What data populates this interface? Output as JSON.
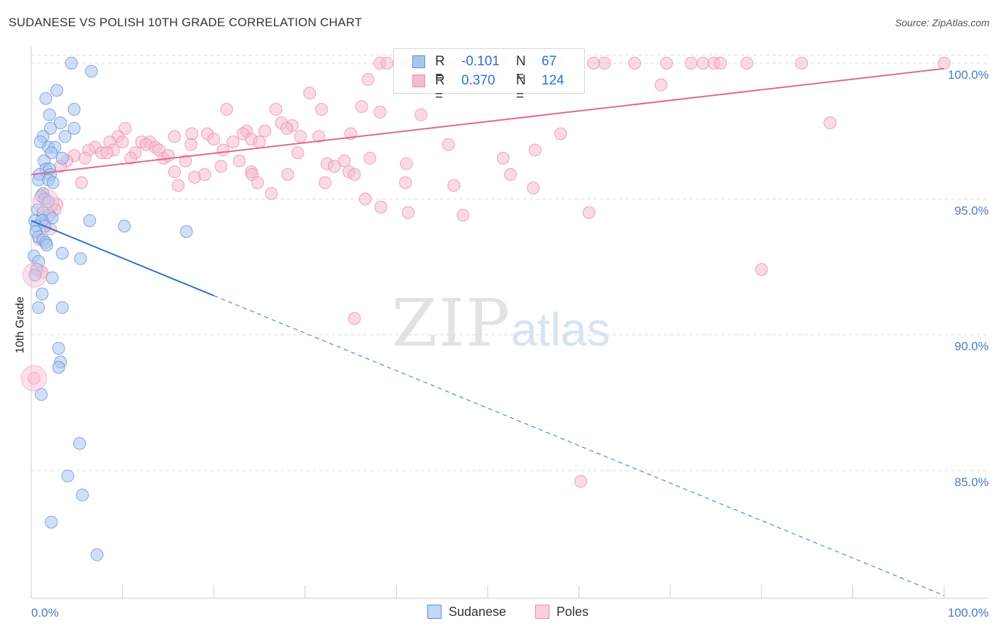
{
  "title": "SUDANESE VS POLISH 10TH GRADE CORRELATION CHART",
  "source": "Source: ZipAtlas.com",
  "watermark": {
    "part1": "ZIP",
    "part2": "atlas"
  },
  "legend": {
    "rows": [
      {
        "r_label": "R =",
        "r_value": "-0.101",
        "n_label": "N =",
        "n_value": "67"
      },
      {
        "r_label": "R =",
        "r_value": "0.370",
        "n_label": "N =",
        "n_value": "124"
      }
    ]
  },
  "bottom_legend": {
    "sudanese": "Sudanese",
    "poles": "Poles"
  },
  "colors": {
    "sudanese_fill": "#a9c5ee",
    "sudanese_stroke": "#5b8fd6",
    "sudanese_line": "#2f6fd1",
    "poles_fill": "#f6bcd0",
    "poles_stroke": "#e88aa8",
    "poles_line": "#e0678f",
    "tick_text": "#4a79c8"
  },
  "chart_data": {
    "type": "scatter",
    "title": "SUDANESE VS POLISH 10TH GRADE CORRELATION CHART",
    "xlabel": "",
    "ylabel": "10th Grade",
    "xlim": [
      0,
      100
    ],
    "ylim": [
      80.3,
      100.6
    ],
    "x_tick_labels": [
      "0.0%",
      "100.0%"
    ],
    "y_ticks": [
      100,
      95,
      90,
      85
    ],
    "y_tick_labels": [
      "100.0%",
      "95.0%",
      "90.0%",
      "85.0%"
    ],
    "grid": "horizontal dashed",
    "legend_position": "top-center",
    "series": [
      {
        "name": "Sudanese",
        "points": [
          [
            4.4,
            100.0
          ],
          [
            6.6,
            99.7
          ],
          [
            2.8,
            99.0
          ],
          [
            1.6,
            98.7
          ],
          [
            4.7,
            98.3
          ],
          [
            2.0,
            98.1
          ],
          [
            3.2,
            97.8
          ],
          [
            4.7,
            97.6
          ],
          [
            2.1,
            97.6
          ],
          [
            1.3,
            97.3
          ],
          [
            3.7,
            97.3
          ],
          [
            1.0,
            97.1
          ],
          [
            1.9,
            96.9
          ],
          [
            2.6,
            96.9
          ],
          [
            2.2,
            96.7
          ],
          [
            3.4,
            96.5
          ],
          [
            1.4,
            96.4
          ],
          [
            1.6,
            96.1
          ],
          [
            2.0,
            96.1
          ],
          [
            0.9,
            95.9
          ],
          [
            2.1,
            95.9
          ],
          [
            0.8,
            95.7
          ],
          [
            1.9,
            95.7
          ],
          [
            2.4,
            95.6
          ],
          [
            1.3,
            95.2
          ],
          [
            1.1,
            95.1
          ],
          [
            1.5,
            95.0
          ],
          [
            1.9,
            94.9
          ],
          [
            0.7,
            94.6
          ],
          [
            1.3,
            94.5
          ],
          [
            2.0,
            94.4
          ],
          [
            2.3,
            94.3
          ],
          [
            0.4,
            94.2
          ],
          [
            1.2,
            94.2
          ],
          [
            6.4,
            94.2
          ],
          [
            0.6,
            94.0
          ],
          [
            1.5,
            94.0
          ],
          [
            10.2,
            94.0
          ],
          [
            17.0,
            93.8
          ],
          [
            0.5,
            93.8
          ],
          [
            0.8,
            93.6
          ],
          [
            1.3,
            93.5
          ],
          [
            1.6,
            93.4
          ],
          [
            1.7,
            93.3
          ],
          [
            3.4,
            93.0
          ],
          [
            0.3,
            92.9
          ],
          [
            5.4,
            92.8
          ],
          [
            0.8,
            92.7
          ],
          [
            0.6,
            92.4
          ],
          [
            0.4,
            92.2
          ],
          [
            2.3,
            92.1
          ],
          [
            1.2,
            91.5
          ],
          [
            3.4,
            91.0
          ],
          [
            0.8,
            91.0
          ],
          [
            3.0,
            89.5
          ],
          [
            3.2,
            89.0
          ],
          [
            3.0,
            88.8
          ],
          [
            1.1,
            87.8
          ],
          [
            5.3,
            86.0
          ],
          [
            4.0,
            84.8
          ],
          [
            5.6,
            84.1
          ],
          [
            2.2,
            83.1
          ],
          [
            7.2,
            81.9
          ]
        ]
      },
      {
        "name": "Poles",
        "points": [
          [
            38.2,
            100.0
          ],
          [
            39.0,
            100.0
          ],
          [
            40.3,
            100.0
          ],
          [
            41.5,
            100.0
          ],
          [
            44.1,
            100.0
          ],
          [
            45.4,
            100.0
          ],
          [
            47.1,
            100.0
          ],
          [
            48.5,
            100.0
          ],
          [
            49.8,
            100.0
          ],
          [
            51.3,
            100.0
          ],
          [
            53.7,
            100.0
          ],
          [
            57.6,
            100.0
          ],
          [
            61.6,
            100.0
          ],
          [
            62.8,
            100.0
          ],
          [
            66.1,
            100.0
          ],
          [
            69.6,
            100.0
          ],
          [
            72.3,
            100.0
          ],
          [
            73.6,
            100.0
          ],
          [
            74.8,
            100.0
          ],
          [
            75.5,
            100.0
          ],
          [
            78.4,
            100.0
          ],
          [
            84.4,
            100.0
          ],
          [
            100.0,
            100.0
          ],
          [
            36.9,
            99.4
          ],
          [
            69.0,
            99.2
          ],
          [
            30.5,
            98.9
          ],
          [
            36.2,
            98.4
          ],
          [
            31.8,
            98.3
          ],
          [
            21.4,
            98.3
          ],
          [
            26.8,
            98.3
          ],
          [
            38.2,
            98.2
          ],
          [
            42.7,
            98.1
          ],
          [
            87.5,
            97.8
          ],
          [
            27.4,
            97.8
          ],
          [
            28.6,
            97.7
          ],
          [
            10.3,
            97.6
          ],
          [
            28.0,
            97.6
          ],
          [
            23.6,
            97.5
          ],
          [
            25.6,
            97.5
          ],
          [
            17.6,
            97.4
          ],
          [
            19.3,
            97.4
          ],
          [
            23.2,
            97.4
          ],
          [
            35.0,
            97.4
          ],
          [
            58.0,
            97.4
          ],
          [
            9.5,
            97.3
          ],
          [
            15.7,
            97.3
          ],
          [
            29.5,
            97.3
          ],
          [
            31.5,
            97.3
          ],
          [
            20.0,
            97.2
          ],
          [
            24.1,
            97.2
          ],
          [
            25.0,
            97.1
          ],
          [
            8.6,
            97.1
          ],
          [
            10.0,
            97.1
          ],
          [
            12.1,
            97.1
          ],
          [
            13.0,
            97.1
          ],
          [
            22.1,
            97.1
          ],
          [
            12.6,
            97.0
          ],
          [
            17.5,
            97.0
          ],
          [
            45.7,
            97.0
          ],
          [
            13.6,
            96.9
          ],
          [
            7.0,
            96.9
          ],
          [
            9.0,
            96.8
          ],
          [
            6.3,
            96.8
          ],
          [
            14.0,
            96.8
          ],
          [
            21.0,
            96.8
          ],
          [
            55.2,
            96.8
          ],
          [
            7.7,
            96.7
          ],
          [
            11.4,
            96.7
          ],
          [
            29.2,
            96.7
          ],
          [
            8.3,
            96.7
          ],
          [
            4.7,
            96.6
          ],
          [
            5.9,
            96.5
          ],
          [
            10.9,
            96.5
          ],
          [
            14.5,
            96.5
          ],
          [
            15.0,
            96.6
          ],
          [
            37.1,
            96.5
          ],
          [
            51.7,
            96.5
          ],
          [
            16.9,
            96.4
          ],
          [
            22.8,
            96.4
          ],
          [
            3.9,
            96.4
          ],
          [
            34.3,
            96.4
          ],
          [
            32.4,
            96.3
          ],
          [
            41.1,
            96.3
          ],
          [
            33.2,
            96.2
          ],
          [
            20.8,
            96.2
          ],
          [
            3.2,
            96.2
          ],
          [
            34.8,
            96.0
          ],
          [
            35.4,
            95.9
          ],
          [
            24.1,
            96.0
          ],
          [
            24.2,
            95.9
          ],
          [
            28.1,
            95.9
          ],
          [
            15.7,
            96.0
          ],
          [
            17.9,
            95.8
          ],
          [
            19.0,
            95.9
          ],
          [
            52.5,
            95.9
          ],
          [
            55.0,
            95.4
          ],
          [
            5.5,
            95.6
          ],
          [
            32.2,
            95.6
          ],
          [
            24.8,
            95.6
          ],
          [
            41.0,
            95.6
          ],
          [
            46.3,
            95.5
          ],
          [
            26.3,
            95.2
          ],
          [
            16.1,
            95.5
          ],
          [
            36.6,
            95.0
          ],
          [
            2.8,
            94.8
          ],
          [
            38.3,
            94.7
          ],
          [
            41.3,
            94.5
          ],
          [
            61.1,
            94.5
          ],
          [
            47.3,
            94.4
          ],
          [
            2.6,
            94.6
          ],
          [
            1.4,
            94.1
          ],
          [
            2.1,
            93.9
          ],
          [
            0.9,
            93.5
          ],
          [
            1.2,
            92.3
          ],
          [
            80.0,
            92.4
          ],
          [
            35.4,
            90.6
          ],
          [
            60.2,
            84.6
          ],
          [
            0.3,
            88.4
          ]
        ]
      }
    ],
    "trend_lines": [
      {
        "series": "Sudanese",
        "x": [
          0,
          100
        ],
        "y": [
          94.2,
          80.4
        ],
        "solid_until_x": 20
      },
      {
        "series": "Poles",
        "x": [
          0,
          100
        ],
        "y": [
          95.9,
          99.8
        ]
      }
    ]
  }
}
